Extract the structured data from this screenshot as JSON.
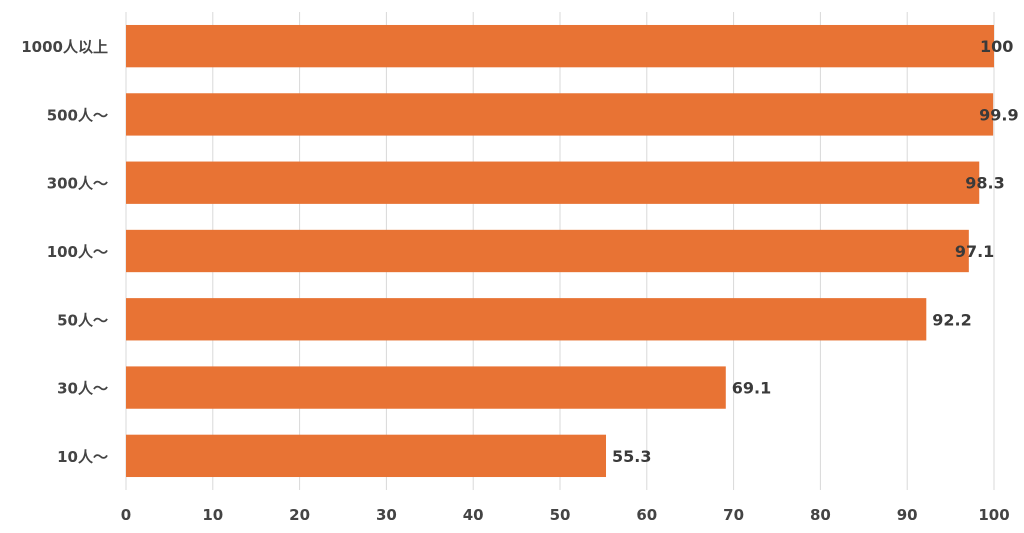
{
  "chart_data": {
    "type": "bar",
    "orientation": "horizontal",
    "categories": [
      "1000人以上",
      "500人～",
      "300人～",
      "100人～",
      "50人～",
      "30人～",
      "10人～"
    ],
    "values": [
      100,
      99.9,
      98.3,
      97.1,
      92.2,
      69.1,
      55.3
    ],
    "value_labels": [
      "100",
      "99.9",
      "98.3",
      "97.1",
      "92.2",
      "69.1",
      "55.3"
    ],
    "title": "",
    "xlabel": "",
    "ylabel": "",
    "xlim": [
      0,
      100
    ],
    "xticks": [
      "0",
      "10",
      "20",
      "30",
      "40",
      "50",
      "60",
      "70",
      "80",
      "90",
      "100"
    ],
    "grid": "vertical",
    "legend": "none",
    "bar_color": "#E87334"
  }
}
